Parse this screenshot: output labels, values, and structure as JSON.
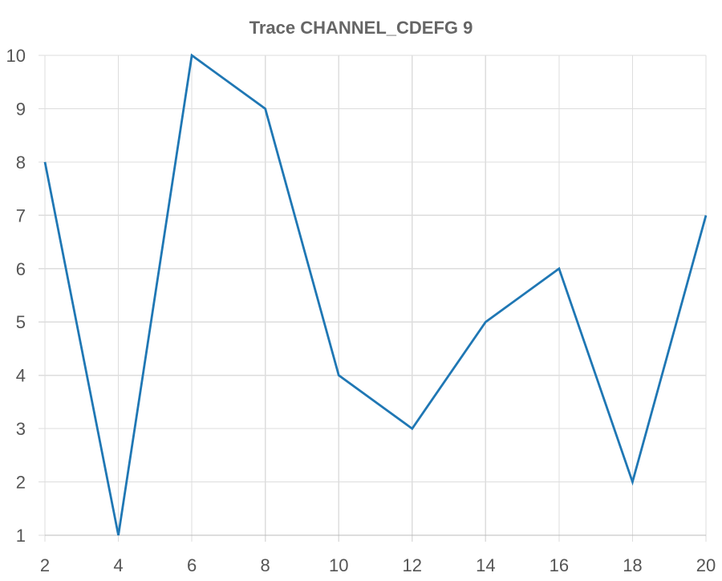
{
  "chart_data": {
    "type": "line",
    "title": "Trace CHANNEL_CDEFG 9",
    "xlabel": "",
    "ylabel": "",
    "x": [
      2,
      4,
      6,
      8,
      10,
      12,
      14,
      16,
      18,
      20
    ],
    "series": [
      {
        "values": [
          8,
          1,
          10,
          9,
          4,
          3,
          5,
          6,
          2,
          7
        ],
        "color": "#1f77b4"
      }
    ],
    "xticks": [
      2,
      4,
      6,
      8,
      10,
      12,
      14,
      16,
      18,
      20
    ],
    "yticks": [
      1,
      2,
      3,
      4,
      5,
      6,
      7,
      8,
      9,
      10
    ],
    "xlim": [
      2,
      20
    ],
    "ylim": [
      1,
      10
    ],
    "grid": true,
    "legend": "none"
  },
  "colors": {
    "series": "#1f77b4",
    "grid": "#dddddd",
    "text": "#555555",
    "title": "#666666"
  }
}
